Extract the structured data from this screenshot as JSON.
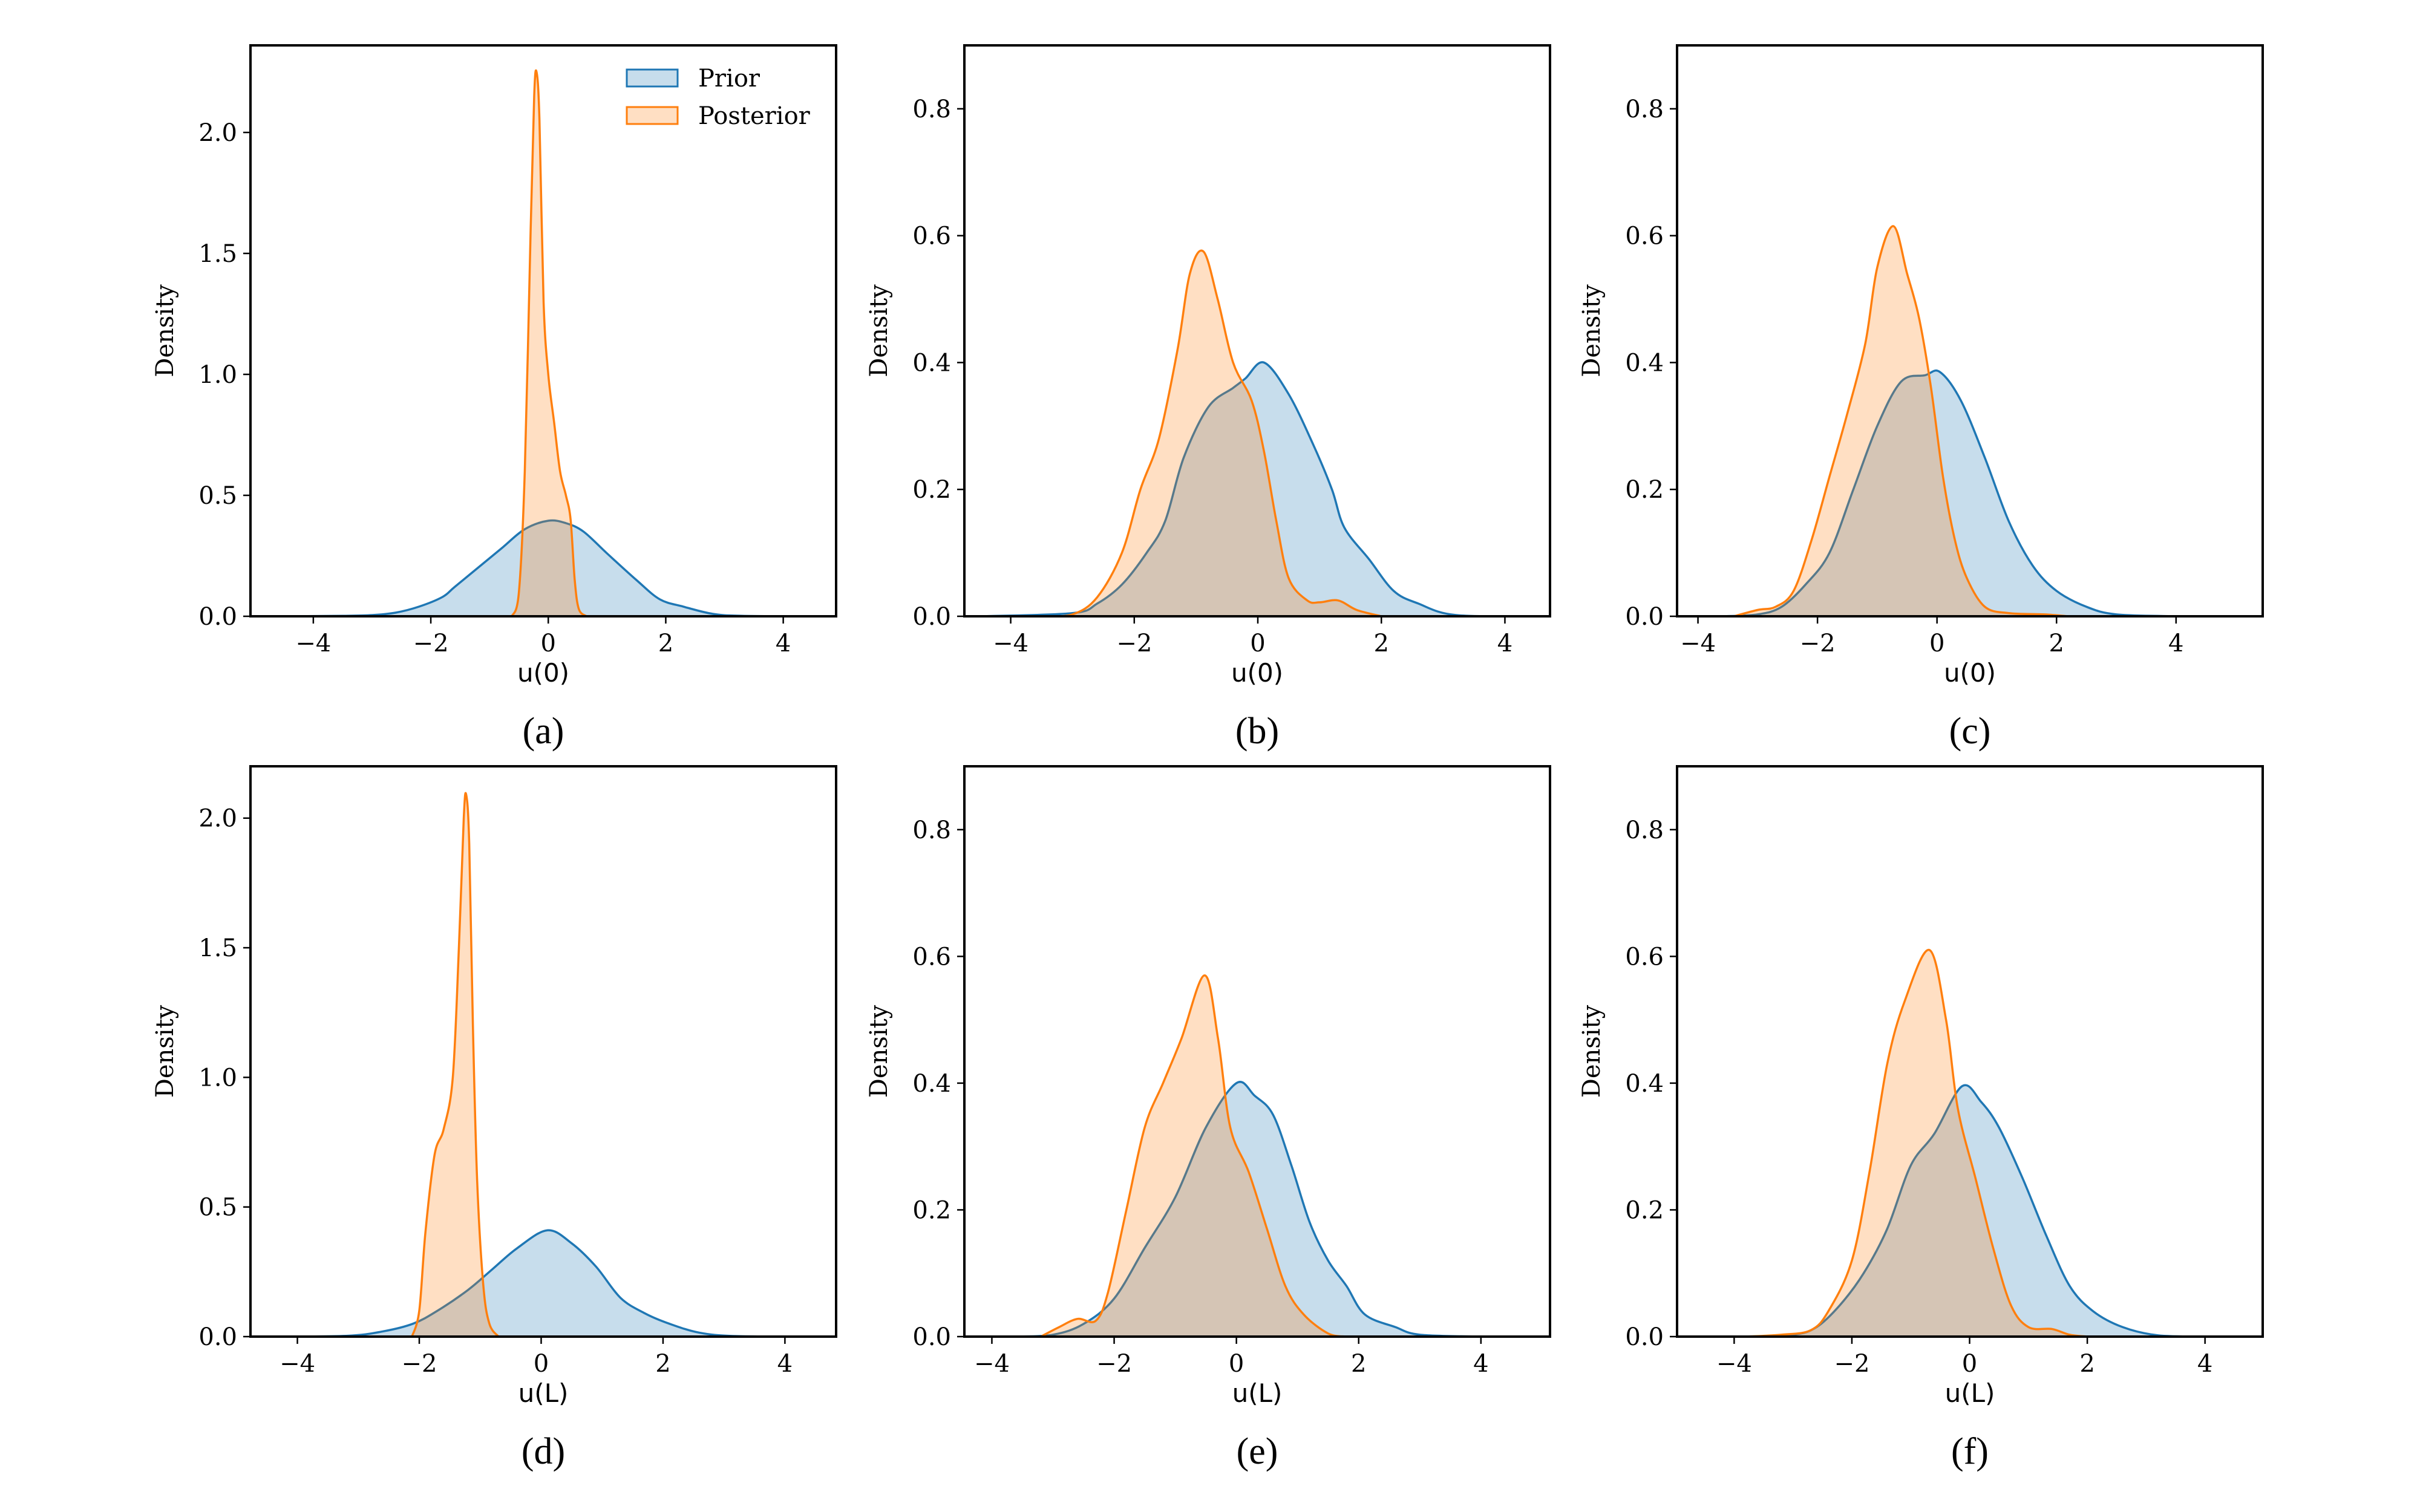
{
  "colors": {
    "prior": "#1f77b4",
    "posterior": "#ff7f0e",
    "fill_alpha": 0.25
  },
  "legend": {
    "location": "upper-right",
    "panel": "a",
    "entries": [
      "Prior",
      "Posterior"
    ]
  },
  "chart_data": [
    {
      "type": "area",
      "panel": "a",
      "caption": "(a)",
      "xlabel": "u(0)",
      "ylabel": "Density",
      "xlim": [
        -5.07,
        4.9
      ],
      "ylim": [
        0,
        2.36
      ],
      "grid": false,
      "xticks": [
        -4,
        -2,
        0,
        2,
        4
      ],
      "xtick_labels": [
        "−4",
        "−2",
        "0",
        "2",
        "4"
      ],
      "yticks": [
        0,
        0.5,
        1.0,
        1.5,
        2.0
      ],
      "ytick_labels": [
        "0.0",
        "0.5",
        "1.0",
        "1.5",
        "2.0"
      ],
      "series": [
        {
          "name": "Prior",
          "x": [
            -4.5,
            -3.5,
            -3,
            -2.6,
            -2.2,
            -1.8,
            -1.6,
            -1.2,
            -0.8,
            -0.4,
            0,
            0.3,
            0.6,
            1,
            1.5,
            1.9,
            2.3,
            2.8,
            3.3,
            4.5
          ],
          "y": [
            0,
            0.002,
            0.005,
            0.015,
            0.04,
            0.08,
            0.12,
            0.2,
            0.28,
            0.36,
            0.395,
            0.385,
            0.35,
            0.26,
            0.15,
            0.07,
            0.04,
            0.01,
            0.002,
            0
          ]
        },
        {
          "name": "Posterior",
          "x": [
            -0.62,
            -0.5,
            -0.4,
            -0.3,
            -0.24,
            -0.2,
            -0.15,
            -0.08,
            0,
            0.1,
            0.2,
            0.3,
            0.38,
            0.45,
            0.52,
            0.65
          ],
          "y": [
            0,
            0.1,
            0.6,
            1.6,
            2.15,
            2.25,
            2.05,
            1.3,
            1.0,
            0.8,
            0.6,
            0.5,
            0.4,
            0.15,
            0.03,
            0
          ]
        }
      ]
    },
    {
      "type": "area",
      "panel": "b",
      "caption": "(b)",
      "xlabel": "u(0)",
      "ylabel": "Density",
      "xlim": [
        -4.75,
        4.73
      ],
      "ylim": [
        0,
        0.9
      ],
      "grid": false,
      "xticks": [
        -4,
        -2,
        0,
        2,
        4
      ],
      "xtick_labels": [
        "−4",
        "−2",
        "0",
        "2",
        "4"
      ],
      "yticks": [
        0,
        0.2,
        0.4,
        0.6,
        0.8
      ],
      "ytick_labels": [
        "0.0",
        "0.2",
        "0.4",
        "0.6",
        "0.8"
      ],
      "series": [
        {
          "name": "Prior",
          "x": [
            -4.5,
            -3,
            -2.6,
            -2.2,
            -1.8,
            -1.5,
            -1.2,
            -0.8,
            -0.4,
            -0.2,
            0.1,
            0.5,
            0.9,
            1.2,
            1.4,
            1.8,
            2.2,
            2.6,
            3.2,
            4.5
          ],
          "y": [
            0,
            0.005,
            0.02,
            0.05,
            0.1,
            0.15,
            0.25,
            0.33,
            0.36,
            0.375,
            0.4,
            0.35,
            0.27,
            0.2,
            0.14,
            0.09,
            0.04,
            0.02,
            0.002,
            0
          ]
        },
        {
          "name": "Posterior",
          "x": [
            -3.5,
            -3,
            -2.6,
            -2.2,
            -1.9,
            -1.6,
            -1.3,
            -1.1,
            -0.88,
            -0.65,
            -0.4,
            -0.1,
            0.1,
            0.3,
            0.5,
            0.8,
            1.0,
            1.3,
            1.6,
            2.0
          ],
          "y": [
            0,
            0.003,
            0.03,
            0.1,
            0.2,
            0.28,
            0.42,
            0.54,
            0.575,
            0.5,
            0.4,
            0.34,
            0.26,
            0.15,
            0.06,
            0.025,
            0.022,
            0.025,
            0.01,
            0
          ]
        }
      ]
    },
    {
      "type": "area",
      "panel": "c",
      "caption": "(c)",
      "xlabel": "u(0)",
      "ylabel": "Density",
      "xlim": [
        -4.35,
        5.45
      ],
      "ylim": [
        0,
        0.9
      ],
      "grid": false,
      "xticks": [
        -4,
        -2,
        0,
        2,
        4
      ],
      "xtick_labels": [
        "−4",
        "−2",
        "0",
        "2",
        "4"
      ],
      "yticks": [
        0,
        0.2,
        0.4,
        0.6,
        0.8
      ],
      "ytick_labels": [
        "0.0",
        "0.2",
        "0.4",
        "0.6",
        "0.8"
      ],
      "series": [
        {
          "name": "Prior",
          "x": [
            -3.6,
            -3,
            -2.6,
            -2.2,
            -1.8,
            -1.4,
            -1,
            -0.6,
            -0.2,
            0.05,
            0.4,
            0.8,
            1.2,
            1.6,
            2.0,
            2.5,
            3,
            4
          ],
          "y": [
            0,
            0.003,
            0.015,
            0.05,
            0.1,
            0.2,
            0.3,
            0.37,
            0.38,
            0.385,
            0.34,
            0.25,
            0.15,
            0.08,
            0.04,
            0.015,
            0.003,
            0
          ]
        },
        {
          "name": "Posterior",
          "x": [
            -3.4,
            -3,
            -2.7,
            -2.4,
            -2.1,
            -1.8,
            -1.5,
            -1.2,
            -1.0,
            -0.73,
            -0.5,
            -0.3,
            -0.1,
            0.1,
            0.3,
            0.5,
            0.8,
            1.2,
            1.8,
            2.2
          ],
          "y": [
            0,
            0.01,
            0.015,
            0.04,
            0.12,
            0.22,
            0.32,
            0.43,
            0.55,
            0.615,
            0.54,
            0.47,
            0.36,
            0.22,
            0.12,
            0.06,
            0.015,
            0.005,
            0.003,
            0
          ]
        }
      ]
    },
    {
      "type": "area",
      "panel": "d",
      "caption": "(d)",
      "xlabel": "u(L)",
      "ylabel": "Density",
      "xlim": [
        -4.77,
        4.84
      ],
      "ylim": [
        0,
        2.2
      ],
      "grid": false,
      "xticks": [
        -4,
        -2,
        0,
        2,
        4
      ],
      "xtick_labels": [
        "−4",
        "−2",
        "0",
        "2",
        "4"
      ],
      "yticks": [
        0,
        0.5,
        1.0,
        1.5,
        2.0
      ],
      "ytick_labels": [
        "0.0",
        "0.5",
        "1.0",
        "1.5",
        "2.0"
      ],
      "series": [
        {
          "name": "Prior",
          "x": [
            -4.5,
            -3.2,
            -2.6,
            -2.1,
            -1.7,
            -1.2,
            -0.8,
            -0.4,
            0.1,
            0.5,
            0.9,
            1.3,
            1.7,
            2.1,
            2.6,
            3.2,
            4.5
          ],
          "y": [
            0,
            0.003,
            0.02,
            0.05,
            0.1,
            0.18,
            0.26,
            0.34,
            0.41,
            0.36,
            0.27,
            0.15,
            0.09,
            0.05,
            0.015,
            0.002,
            0
          ]
        },
        {
          "name": "Posterior",
          "x": [
            -2.12,
            -2.0,
            -1.9,
            -1.75,
            -1.6,
            -1.45,
            -1.35,
            -1.27,
            -1.23,
            -1.18,
            -1.12,
            -1.05,
            -0.95,
            -0.85,
            -0.7
          ],
          "y": [
            0,
            0.1,
            0.4,
            0.7,
            0.8,
            1.0,
            1.5,
            2.0,
            2.09,
            1.9,
            1.2,
            0.6,
            0.2,
            0.05,
            0
          ]
        }
      ]
    },
    {
      "type": "area",
      "panel": "e",
      "caption": "(e)",
      "xlabel": "u(L)",
      "ylabel": "Density",
      "xlim": [
        -4.45,
        5.13
      ],
      "ylim": [
        0,
        0.9
      ],
      "grid": false,
      "xticks": [
        -4,
        -2,
        0,
        2,
        4
      ],
      "xtick_labels": [
        "−4",
        "−2",
        "0",
        "2",
        "4"
      ],
      "yticks": [
        0,
        0.2,
        0.4,
        0.6,
        0.8
      ],
      "ytick_labels": [
        "0.0",
        "0.2",
        "0.4",
        "0.6",
        "0.8"
      ],
      "series": [
        {
          "name": "Prior",
          "x": [
            -3.6,
            -3,
            -2.5,
            -2.0,
            -1.5,
            -1.0,
            -0.5,
            0,
            0.3,
            0.6,
            0.9,
            1.2,
            1.5,
            1.8,
            2.1,
            2.6,
            3.0,
            4
          ],
          "y": [
            0,
            0.003,
            0.02,
            0.06,
            0.14,
            0.22,
            0.33,
            0.4,
            0.38,
            0.35,
            0.27,
            0.18,
            0.12,
            0.08,
            0.035,
            0.015,
            0.003,
            0
          ]
        },
        {
          "name": "Posterior",
          "x": [
            -3.2,
            -2.9,
            -2.6,
            -2.3,
            -2.1,
            -1.8,
            -1.5,
            -1.2,
            -0.9,
            -0.52,
            -0.3,
            -0.1,
            0.2,
            0.5,
            0.8,
            1.1,
            1.5,
            1.8
          ],
          "y": [
            0,
            0.015,
            0.028,
            0.025,
            0.07,
            0.2,
            0.33,
            0.4,
            0.47,
            0.57,
            0.47,
            0.33,
            0.26,
            0.17,
            0.08,
            0.035,
            0.005,
            0
          ]
        }
      ]
    },
    {
      "type": "area",
      "panel": "f",
      "caption": "(f)",
      "xlabel": "u(L)",
      "ylabel": "Density",
      "xlim": [
        -4.97,
        4.98
      ],
      "ylim": [
        0,
        0.9
      ],
      "grid": false,
      "xticks": [
        -4,
        -2,
        0,
        2,
        4
      ],
      "xtick_labels": [
        "−4",
        "−2",
        "0",
        "2",
        "4"
      ],
      "yticks": [
        0,
        0.2,
        0.4,
        0.6,
        0.8
      ],
      "ytick_labels": [
        "0.0",
        "0.2",
        "0.4",
        "0.6",
        "0.8"
      ],
      "series": [
        {
          "name": "Prior",
          "x": [
            -3.8,
            -3,
            -2.6,
            -2.2,
            -1.8,
            -1.4,
            -1.0,
            -0.6,
            -0.13,
            0.2,
            0.5,
            0.9,
            1.3,
            1.7,
            2.1,
            2.6,
            3.2,
            4
          ],
          "y": [
            0,
            0.003,
            0.015,
            0.05,
            0.1,
            0.17,
            0.27,
            0.32,
            0.395,
            0.37,
            0.33,
            0.25,
            0.16,
            0.08,
            0.04,
            0.015,
            0.002,
            0
          ]
        },
        {
          "name": "Posterior",
          "x": [
            -3.8,
            -3.2,
            -2.7,
            -2.4,
            -2.0,
            -1.7,
            -1.4,
            -1.1,
            -0.68,
            -0.4,
            -0.2,
            0.1,
            0.4,
            0.7,
            1.0,
            1.4,
            1.7,
            2.0
          ],
          "y": [
            0,
            0.003,
            0.01,
            0.04,
            0.12,
            0.26,
            0.43,
            0.53,
            0.61,
            0.5,
            0.36,
            0.25,
            0.14,
            0.05,
            0.015,
            0.012,
            0.003,
            0
          ]
        }
      ]
    }
  ]
}
